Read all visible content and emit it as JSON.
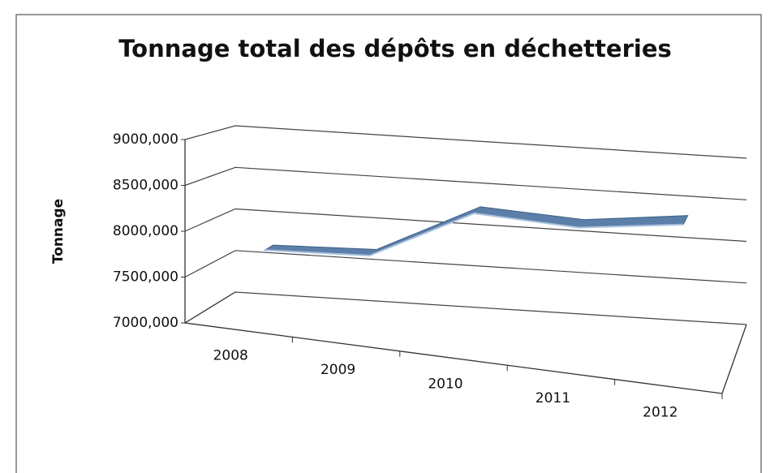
{
  "chart_data": {
    "type": "line3d",
    "title": "Tonnage total des dépôts en déchetteries",
    "y_label": "Tonnage",
    "categories": [
      "2008",
      "2009",
      "2010",
      "2011",
      "2012"
    ],
    "series": [
      {
        "name": "Tonnage",
        "color": "#5b7fa8",
        "values": [
          7700,
          7750,
          8350,
          8300,
          8450
        ]
      }
    ],
    "ylim": [
      7000,
      9000
    ],
    "yticks": [
      {
        "value": 7000,
        "label": "7000,000"
      },
      {
        "value": 7500,
        "label": "7500,000"
      },
      {
        "value": 8000,
        "label": "8000,000"
      },
      {
        "value": 8500,
        "label": "8500,000"
      },
      {
        "value": 9000,
        "label": "9000,000"
      }
    ],
    "grid": true
  }
}
